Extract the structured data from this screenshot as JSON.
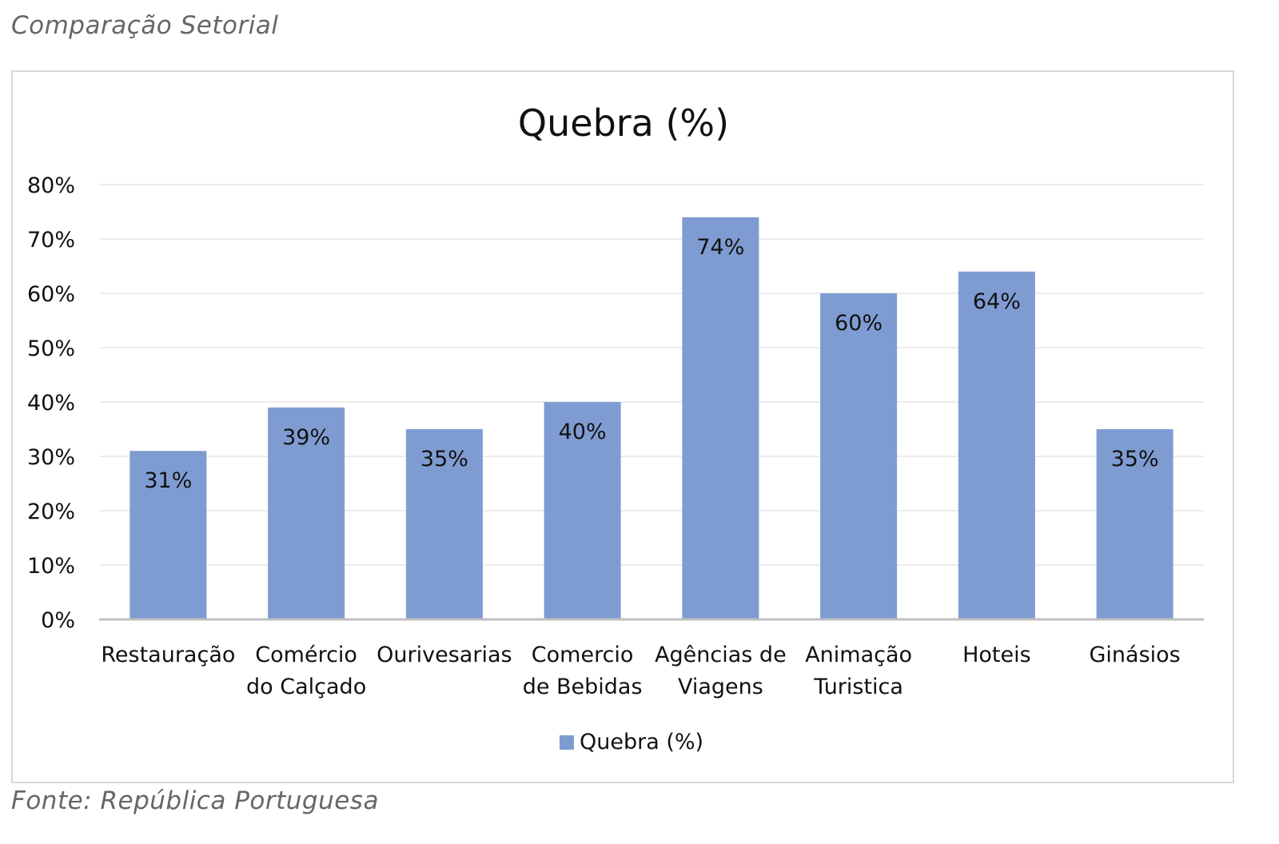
{
  "header": {
    "caption": "Comparação Setorial"
  },
  "footer": {
    "source": "Fonte: República Portuguesa"
  },
  "chart_data": {
    "type": "bar",
    "title": "Quebra (%)",
    "xlabel": "",
    "ylabel": "",
    "categories": [
      [
        "Restauração"
      ],
      [
        "Comércio",
        "do Calçado"
      ],
      [
        "Ourivesarias"
      ],
      [
        "Comercio",
        "de Bebidas"
      ],
      [
        "Agências de",
        "Viagens"
      ],
      [
        "Animação",
        "Turistica"
      ],
      [
        "Hoteis"
      ],
      [
        "Ginásios"
      ]
    ],
    "series": [
      {
        "name": "Quebra (%)",
        "values": [
          31,
          39,
          35,
          40,
          74,
          60,
          64,
          35
        ],
        "data_labels": [
          "31%",
          "39%",
          "35%",
          "40%",
          "74%",
          "60%",
          "64%",
          "35%"
        ],
        "color": "#7f9cd2"
      }
    ],
    "ylim": [
      0,
      80
    ],
    "yticks": [
      0,
      10,
      20,
      30,
      40,
      50,
      60,
      70,
      80
    ],
    "ytick_labels": [
      "0%",
      "10%",
      "20%",
      "30%",
      "40%",
      "50%",
      "60%",
      "70%",
      "80%"
    ],
    "grid": true,
    "legend": "bottom",
    "colors": {
      "bar": "#7f9cd2",
      "grid": "#ececec",
      "axis": "#bfbfbf"
    }
  }
}
